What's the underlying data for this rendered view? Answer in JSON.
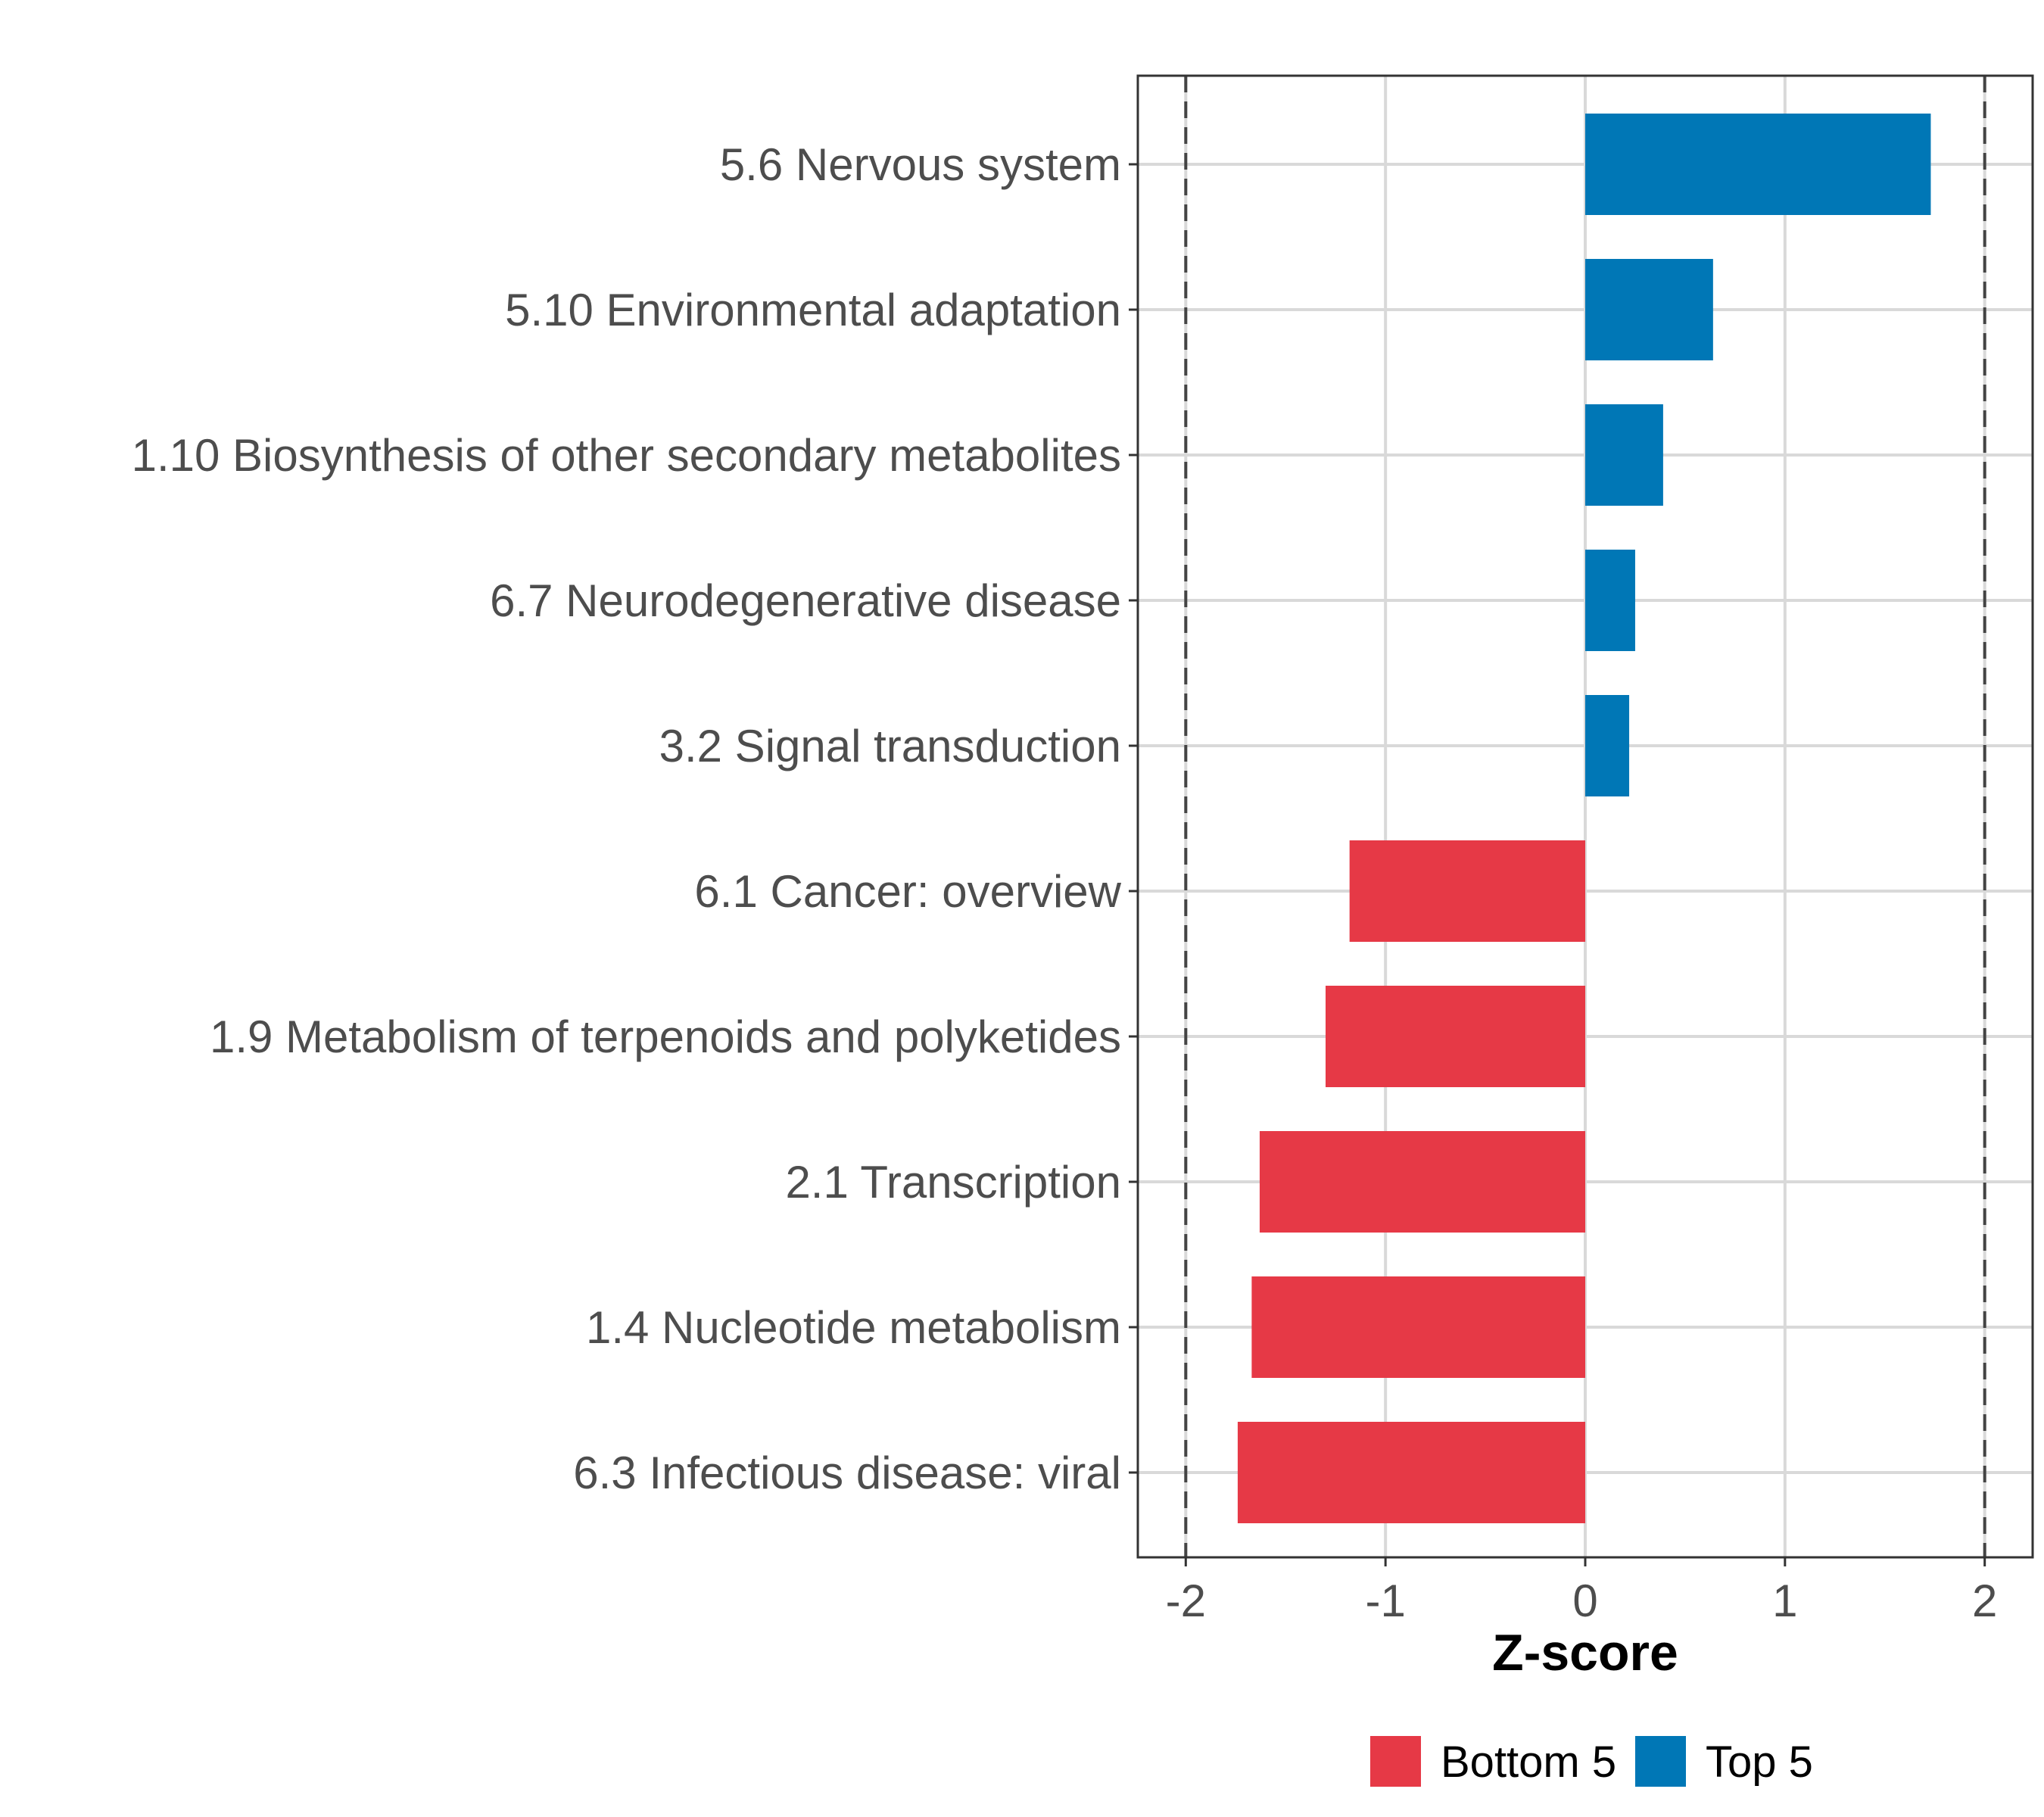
{
  "chart_data": {
    "type": "bar",
    "orientation": "horizontal",
    "xlabel": "Z-score",
    "xlim": [
      -2.24,
      2.24
    ],
    "xticks": [
      "-2",
      "-1",
      "0",
      "1",
      "2"
    ],
    "xtick_values": [
      -2,
      -1,
      0,
      1,
      2
    ],
    "reference_lines": [
      -2,
      2
    ],
    "categories": [
      "5.6 Nervous system",
      "5.10 Environmental adaptation",
      "1.10 Biosynthesis of other secondary metabolites",
      "6.7 Neurodegenerative disease",
      "3.2 Signal transduction",
      "6.1 Cancer: overview",
      "1.9 Metabolism of terpenoids and polyketides",
      "2.1 Transcription",
      "1.4 Nucleotide metabolism",
      "6.3 Infectious disease: viral"
    ],
    "values": [
      1.73,
      0.64,
      0.39,
      0.25,
      0.22,
      -1.18,
      -1.3,
      -1.63,
      -1.67,
      -1.74
    ],
    "groups": [
      "Top 5",
      "Top 5",
      "Top 5",
      "Top 5",
      "Top 5",
      "Bottom 5",
      "Bottom 5",
      "Bottom 5",
      "Bottom 5",
      "Bottom 5"
    ],
    "legend": [
      {
        "label": "Bottom 5",
        "color": "#e63946"
      },
      {
        "label": "Top 5",
        "color": "#0077b6"
      }
    ],
    "legend_position": "bottom"
  }
}
